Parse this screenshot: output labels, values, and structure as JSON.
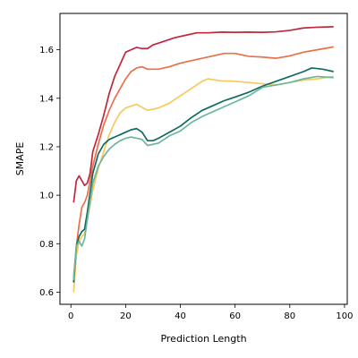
{
  "chart_data": {
    "type": "line",
    "xlabel": "Prediction Length",
    "ylabel": "SMAPE",
    "xlim": [
      -4,
      101
    ],
    "ylim": [
      0.55,
      1.75
    ],
    "x_ticks": [
      0,
      20,
      40,
      60,
      80,
      100
    ],
    "y_ticks": [
      0.6,
      0.8,
      1.0,
      1.2,
      1.4,
      1.6
    ],
    "x_tick_labels": [
      "0",
      "20",
      "40",
      "60",
      "80",
      "100"
    ],
    "y_tick_labels": [
      "0.6",
      "0.8",
      "1.0",
      "1.2",
      "1.4",
      "1.6"
    ],
    "grid": false,
    "legend": "none",
    "series": [
      {
        "color": "#c0273d",
        "points": [
          [
            1,
            0.97
          ],
          [
            2,
            1.06
          ],
          [
            3,
            1.08
          ],
          [
            4,
            1.06
          ],
          [
            5,
            1.04
          ],
          [
            6,
            1.05
          ],
          [
            7,
            1.09
          ],
          [
            8,
            1.18
          ],
          [
            10,
            1.25
          ],
          [
            12,
            1.33
          ],
          [
            14,
            1.42
          ],
          [
            16,
            1.49
          ],
          [
            18,
            1.54
          ],
          [
            20,
            1.59
          ],
          [
            22,
            1.6
          ],
          [
            24,
            1.61
          ],
          [
            26,
            1.605
          ],
          [
            28,
            1.605
          ],
          [
            30,
            1.62
          ],
          [
            34,
            1.635
          ],
          [
            38,
            1.65
          ],
          [
            42,
            1.66
          ],
          [
            46,
            1.67
          ],
          [
            50,
            1.67
          ],
          [
            55,
            1.673
          ],
          [
            60,
            1.672
          ],
          [
            65,
            1.673
          ],
          [
            70,
            1.672
          ],
          [
            75,
            1.674
          ],
          [
            80,
            1.68
          ],
          [
            85,
            1.69
          ],
          [
            90,
            1.693
          ],
          [
            96,
            1.695
          ]
        ]
      },
      {
        "color": "#e8704a",
        "points": [
          [
            1,
            0.66
          ],
          [
            2,
            0.79
          ],
          [
            3,
            0.88
          ],
          [
            4,
            0.95
          ],
          [
            5,
            0.97
          ],
          [
            6,
            1.0
          ],
          [
            8,
            1.12
          ],
          [
            10,
            1.21
          ],
          [
            12,
            1.29
          ],
          [
            14,
            1.35
          ],
          [
            16,
            1.4
          ],
          [
            18,
            1.44
          ],
          [
            20,
            1.48
          ],
          [
            22,
            1.51
          ],
          [
            24,
            1.525
          ],
          [
            26,
            1.53
          ],
          [
            28,
            1.52
          ],
          [
            32,
            1.52
          ],
          [
            36,
            1.53
          ],
          [
            40,
            1.545
          ],
          [
            44,
            1.555
          ],
          [
            48,
            1.565
          ],
          [
            52,
            1.575
          ],
          [
            56,
            1.585
          ],
          [
            60,
            1.585
          ],
          [
            65,
            1.573
          ],
          [
            70,
            1.57
          ],
          [
            75,
            1.565
          ],
          [
            80,
            1.575
          ],
          [
            85,
            1.59
          ],
          [
            90,
            1.6
          ],
          [
            96,
            1.612
          ]
        ]
      },
      {
        "color": "#f7c95c",
        "points": [
          [
            1,
            0.6
          ],
          [
            2,
            0.75
          ],
          [
            3,
            0.81
          ],
          [
            4,
            0.83
          ],
          [
            5,
            0.84
          ],
          [
            6,
            0.9
          ],
          [
            8,
            1.02
          ],
          [
            10,
            1.11
          ],
          [
            12,
            1.18
          ],
          [
            14,
            1.25
          ],
          [
            16,
            1.3
          ],
          [
            18,
            1.34
          ],
          [
            20,
            1.36
          ],
          [
            24,
            1.375
          ],
          [
            28,
            1.35
          ],
          [
            32,
            1.36
          ],
          [
            36,
            1.38
          ],
          [
            40,
            1.41
          ],
          [
            44,
            1.44
          ],
          [
            48,
            1.47
          ],
          [
            50,
            1.48
          ],
          [
            55,
            1.472
          ],
          [
            60,
            1.47
          ],
          [
            65,
            1.465
          ],
          [
            70,
            1.46
          ],
          [
            75,
            1.455
          ],
          [
            80,
            1.465
          ],
          [
            85,
            1.475
          ],
          [
            90,
            1.48
          ],
          [
            96,
            1.49
          ]
        ]
      },
      {
        "color": "#0f6b62",
        "points": [
          [
            1,
            0.64
          ],
          [
            2,
            0.79
          ],
          [
            3,
            0.83
          ],
          [
            4,
            0.85
          ],
          [
            5,
            0.86
          ],
          [
            6,
            0.93
          ],
          [
            8,
            1.09
          ],
          [
            10,
            1.17
          ],
          [
            12,
            1.21
          ],
          [
            14,
            1.23
          ],
          [
            16,
            1.24
          ],
          [
            18,
            1.25
          ],
          [
            20,
            1.26
          ],
          [
            22,
            1.27
          ],
          [
            24,
            1.275
          ],
          [
            26,
            1.26
          ],
          [
            28,
            1.225
          ],
          [
            30,
            1.225
          ],
          [
            32,
            1.235
          ],
          [
            36,
            1.26
          ],
          [
            40,
            1.285
          ],
          [
            44,
            1.32
          ],
          [
            48,
            1.35
          ],
          [
            52,
            1.37
          ],
          [
            56,
            1.39
          ],
          [
            60,
            1.405
          ],
          [
            65,
            1.425
          ],
          [
            70,
            1.45
          ],
          [
            75,
            1.47
          ],
          [
            80,
            1.49
          ],
          [
            85,
            1.51
          ],
          [
            88,
            1.525
          ],
          [
            92,
            1.52
          ],
          [
            96,
            1.51
          ]
        ]
      },
      {
        "color": "#6ab79a",
        "points": [
          [
            1,
            0.65
          ],
          [
            2,
            0.79
          ],
          [
            3,
            0.81
          ],
          [
            4,
            0.79
          ],
          [
            5,
            0.82
          ],
          [
            6,
            0.9
          ],
          [
            8,
            1.05
          ],
          [
            10,
            1.12
          ],
          [
            12,
            1.16
          ],
          [
            14,
            1.19
          ],
          [
            16,
            1.21
          ],
          [
            18,
            1.225
          ],
          [
            20,
            1.235
          ],
          [
            22,
            1.24
          ],
          [
            24,
            1.235
          ],
          [
            26,
            1.23
          ],
          [
            28,
            1.205
          ],
          [
            30,
            1.21
          ],
          [
            32,
            1.215
          ],
          [
            36,
            1.245
          ],
          [
            40,
            1.265
          ],
          [
            44,
            1.3
          ],
          [
            48,
            1.325
          ],
          [
            52,
            1.345
          ],
          [
            56,
            1.365
          ],
          [
            60,
            1.385
          ],
          [
            65,
            1.41
          ],
          [
            70,
            1.445
          ],
          [
            75,
            1.455
          ],
          [
            80,
            1.465
          ],
          [
            85,
            1.48
          ],
          [
            90,
            1.49
          ],
          [
            96,
            1.485
          ]
        ]
      }
    ]
  }
}
